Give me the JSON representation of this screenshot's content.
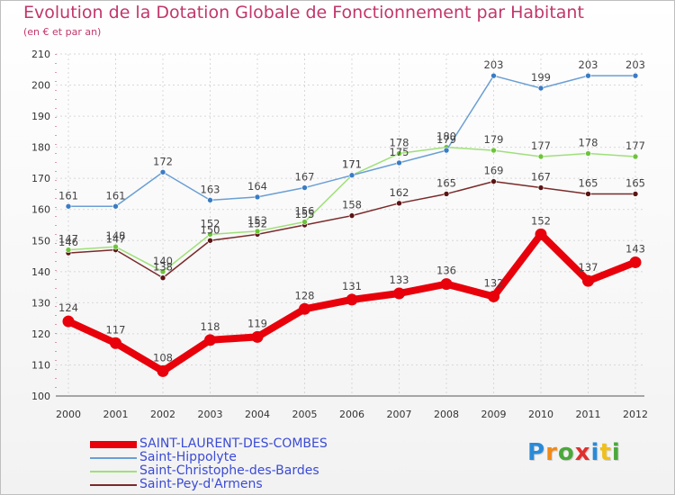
{
  "title": "Evolution de la Dotation Globale de Fonctionnement par Habitant",
  "subtitle": "(en € et par an)",
  "logo": {
    "text": "Proxiti",
    "letters": [
      {
        "ch": "P",
        "color": "#2a8ad8"
      },
      {
        "ch": "r",
        "color": "#f08a18"
      },
      {
        "ch": "o",
        "color": "#4aa83a"
      },
      {
        "ch": "x",
        "color": "#e0302e"
      },
      {
        "ch": "i",
        "color": "#2a8ad8"
      },
      {
        "ch": "t",
        "color": "#f0c018"
      },
      {
        "ch": "i",
        "color": "#4aa83a"
      }
    ]
  },
  "chart_data": {
    "type": "line",
    "title": "Evolution de la Dotation Globale de Fonctionnement par Habitant",
    "subtitle": "(en € et par an)",
    "xlabel": "",
    "ylabel": "",
    "categories": [
      "2000",
      "2001",
      "2002",
      "2003",
      "2004",
      "2005",
      "2006",
      "2007",
      "2008",
      "2009",
      "2010",
      "2011",
      "2012"
    ],
    "ylim": [
      100,
      210
    ],
    "yticks": [
      100,
      110,
      120,
      130,
      140,
      150,
      160,
      170,
      180,
      190,
      200,
      210
    ],
    "grid": true,
    "legend_position": "bottom-left",
    "series": [
      {
        "name": "SAINT-LAURENT-DES-COMBES",
        "color": "#e8000b",
        "marker": "#e8000b",
        "width": 8,
        "values": [
          124,
          117,
          108,
          118,
          119,
          128,
          131,
          133,
          136,
          132,
          152,
          137,
          143
        ]
      },
      {
        "name": "Saint-Hippolyte",
        "color": "#6a9fd4",
        "marker": "#3a7cc4",
        "width": 1.5,
        "values": [
          161,
          161,
          172,
          163,
          164,
          167,
          171,
          175,
          179,
          203,
          199,
          203,
          203
        ]
      },
      {
        "name": "Saint-Christophe-des-Bardes",
        "color": "#9fe07a",
        "marker": "#6dc43a",
        "width": 1.5,
        "values": [
          147,
          148,
          140,
          152,
          153,
          156,
          171,
          178,
          180,
          179,
          177,
          178,
          177
        ]
      },
      {
        "name": "Saint-Pey-d'Armens",
        "color": "#7a2a2a",
        "marker": "#5a1414",
        "width": 1.5,
        "values": [
          146,
          147,
          138,
          150,
          152,
          155,
          158,
          162,
          165,
          169,
          167,
          165,
          165
        ]
      }
    ]
  }
}
